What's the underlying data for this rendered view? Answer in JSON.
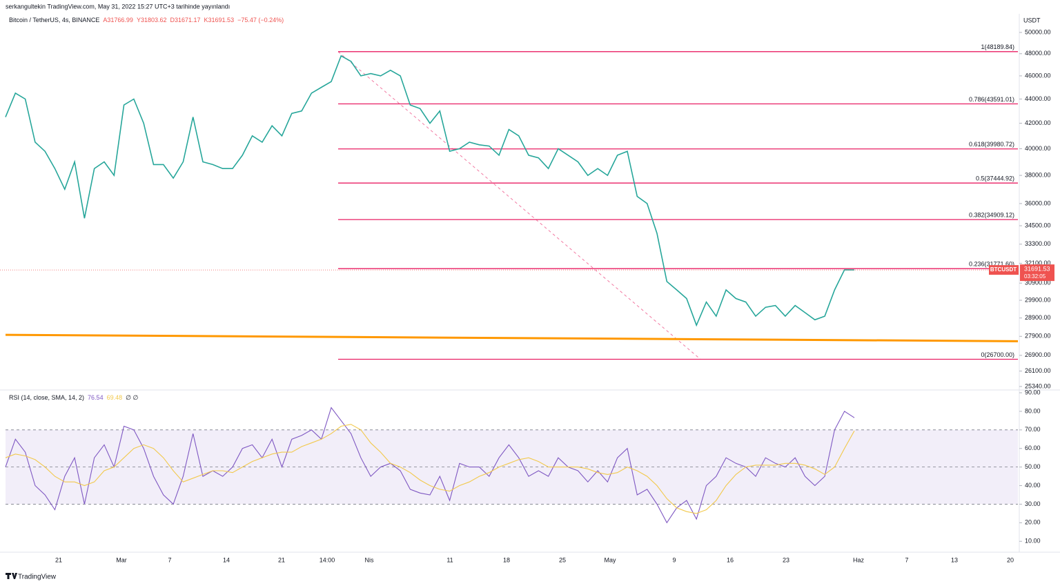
{
  "header": {
    "publisher": "serkangultekin TradingView.com, May 31, 2022 15:27 UTC+3 tarihinde yayınlandı",
    "brand": "TradingView"
  },
  "chart_data": [
    {
      "type": "line",
      "title": "Bitcoin / TetherUS, 4s, BINANCE",
      "ohlc": [
        "A31766.99",
        "Y31803.62",
        "D31671.17",
        "K31691.53",
        "−75.47 (−0.24%)"
      ],
      "axis_label": "USDT",
      "log": true,
      "ylim": [
        25170,
        51820
      ],
      "yticks": [
        {
          "value": 50000,
          "label": "50000.00"
        },
        {
          "value": 48000,
          "label": "48000.00"
        },
        {
          "value": 46000,
          "label": "46000.00"
        },
        {
          "value": 44000,
          "label": "44000.00"
        },
        {
          "value": 42000,
          "label": "42000.00"
        },
        {
          "value": 40000,
          "label": "40000.00"
        },
        {
          "value": 38000,
          "label": "38000.00"
        },
        {
          "value": 36000,
          "label": "36000.00"
        },
        {
          "value": 34500,
          "label": "34500.00"
        },
        {
          "value": 33300,
          "label": "33300.00"
        },
        {
          "value": 32100,
          "label": "32100.00"
        },
        {
          "value": 30900,
          "label": "30900.00"
        },
        {
          "value": 29900,
          "label": "29900.00"
        },
        {
          "value": 28900,
          "label": "28900.00"
        },
        {
          "value": 27900,
          "label": "27900.00"
        },
        {
          "value": 26900,
          "label": "26900.00"
        },
        {
          "value": 26100,
          "label": "26100.00"
        },
        {
          "value": 25340,
          "label": "25340.00"
        }
      ],
      "series": [
        {
          "name": "BTCUSDT",
          "color": "#26a69a",
          "values": [
            42500,
            44500,
            44000,
            40500,
            39800,
            38500,
            37000,
            39000,
            35000,
            38500,
            39000,
            38000,
            43500,
            44000,
            42000,
            38800,
            38800,
            37800,
            39000,
            42500,
            39000,
            38800,
            38500,
            38500,
            39500,
            41000,
            40500,
            41800,
            41000,
            42800,
            43000,
            44500,
            45000,
            45500,
            47800,
            47300,
            46000,
            46200,
            46000,
            46500,
            46000,
            43500,
            43200,
            42000,
            43000,
            39800,
            40000,
            40500,
            40300,
            40200,
            39500,
            41500,
            41000,
            39500,
            39300,
            38500,
            40000,
            39500,
            39000,
            38000,
            38500,
            38000,
            39500,
            39800,
            36500,
            36000,
            34000,
            31000,
            30500,
            30000,
            28500,
            29800,
            29000,
            30500,
            30000,
            29800,
            29000,
            29500,
            29600,
            29000,
            29600,
            29200,
            28800,
            29000,
            30500,
            31700,
            31691.53
          ]
        }
      ],
      "countdown": "03:32:05",
      "fib_color": "#e91e63",
      "fib_levels": [
        {
          "value": 48189.84,
          "label": "1(48189.84)"
        },
        {
          "value": 43591.01,
          "label": "0.786(43591.01)"
        },
        {
          "value": 39980.72,
          "label": "0.618(39980.72)"
        },
        {
          "value": 37444.92,
          "label": "0.5(37444.92)"
        },
        {
          "value": 34909.12,
          "label": "0.382(34909.12)"
        },
        {
          "value": 31771.6,
          "label": "0.236(31771.60)"
        },
        {
          "value": 26700.0,
          "label": "0(26700.00)"
        }
      ],
      "trendline": {
        "color": "#ff9800",
        "values": [
          27980,
          27640
        ]
      }
    },
    {
      "type": "line",
      "title": "RSI (14, close, SMA, 14, 2)",
      "legend_tail": "∅ ∅",
      "ylim": [
        6,
        91.5
      ],
      "yticks": [
        {
          "value": 90,
          "label": "90.00"
        },
        {
          "value": 80,
          "label": "80.00"
        },
        {
          "value": 70,
          "label": "70.00"
        },
        {
          "value": 60,
          "label": "60.00"
        },
        {
          "value": 50,
          "label": "50.00"
        },
        {
          "value": 40,
          "label": "40.00"
        },
        {
          "value": 30,
          "label": "30.00"
        },
        {
          "value": 20,
          "label": "20.00"
        },
        {
          "value": 10,
          "label": "10.00"
        }
      ],
      "band": [
        30,
        70
      ],
      "midline": 50,
      "band_color": "#7e57c2",
      "series": [
        {
          "name": "RSI",
          "color": "#7e57c2",
          "values": [
            50,
            65,
            58,
            40,
            35,
            27,
            45,
            55,
            30,
            55,
            62,
            50,
            72,
            70,
            60,
            45,
            35,
            30,
            45,
            68,
            45,
            48,
            45,
            50,
            60,
            62,
            55,
            65,
            50,
            65,
            67,
            70,
            65,
            82,
            75,
            68,
            55,
            45,
            50,
            52,
            48,
            38,
            36,
            35,
            45,
            32,
            52,
            50,
            50,
            45,
            55,
            62,
            55,
            45,
            48,
            45,
            55,
            50,
            48,
            42,
            48,
            42,
            55,
            60,
            35,
            38,
            30,
            20,
            28,
            32,
            22,
            40,
            45,
            55,
            52,
            50,
            45,
            55,
            52,
            50,
            55,
            45,
            40,
            45,
            70,
            80,
            76.54
          ]
        },
        {
          "name": "SMA",
          "color": "#f2c94c",
          "values": [
            55,
            57,
            56,
            54,
            50,
            45,
            42,
            42,
            40,
            42,
            48,
            50,
            55,
            60,
            62,
            60,
            55,
            48,
            42,
            44,
            46,
            48,
            48,
            47,
            50,
            53,
            55,
            57,
            58,
            58,
            61,
            63,
            65,
            68,
            72,
            73,
            70,
            63,
            58,
            52,
            50,
            47,
            43,
            40,
            38,
            37,
            40,
            42,
            45,
            47,
            50,
            52,
            54,
            55,
            53,
            50,
            50,
            50,
            50,
            49,
            47,
            46,
            47,
            50,
            48,
            45,
            40,
            33,
            28,
            26,
            25,
            27,
            32,
            40,
            46,
            50,
            51,
            51,
            51,
            52,
            52,
            51,
            49,
            46,
            50,
            60,
            69.48
          ]
        }
      ],
      "x_labels": [
        "21",
        "Mar",
        "7",
        "14",
        "21",
        "14:00",
        "Nis",
        "11",
        "18",
        "25",
        "May",
        "9",
        "16",
        "23",
        "Haz",
        "7",
        "13",
        "20"
      ]
    }
  ]
}
